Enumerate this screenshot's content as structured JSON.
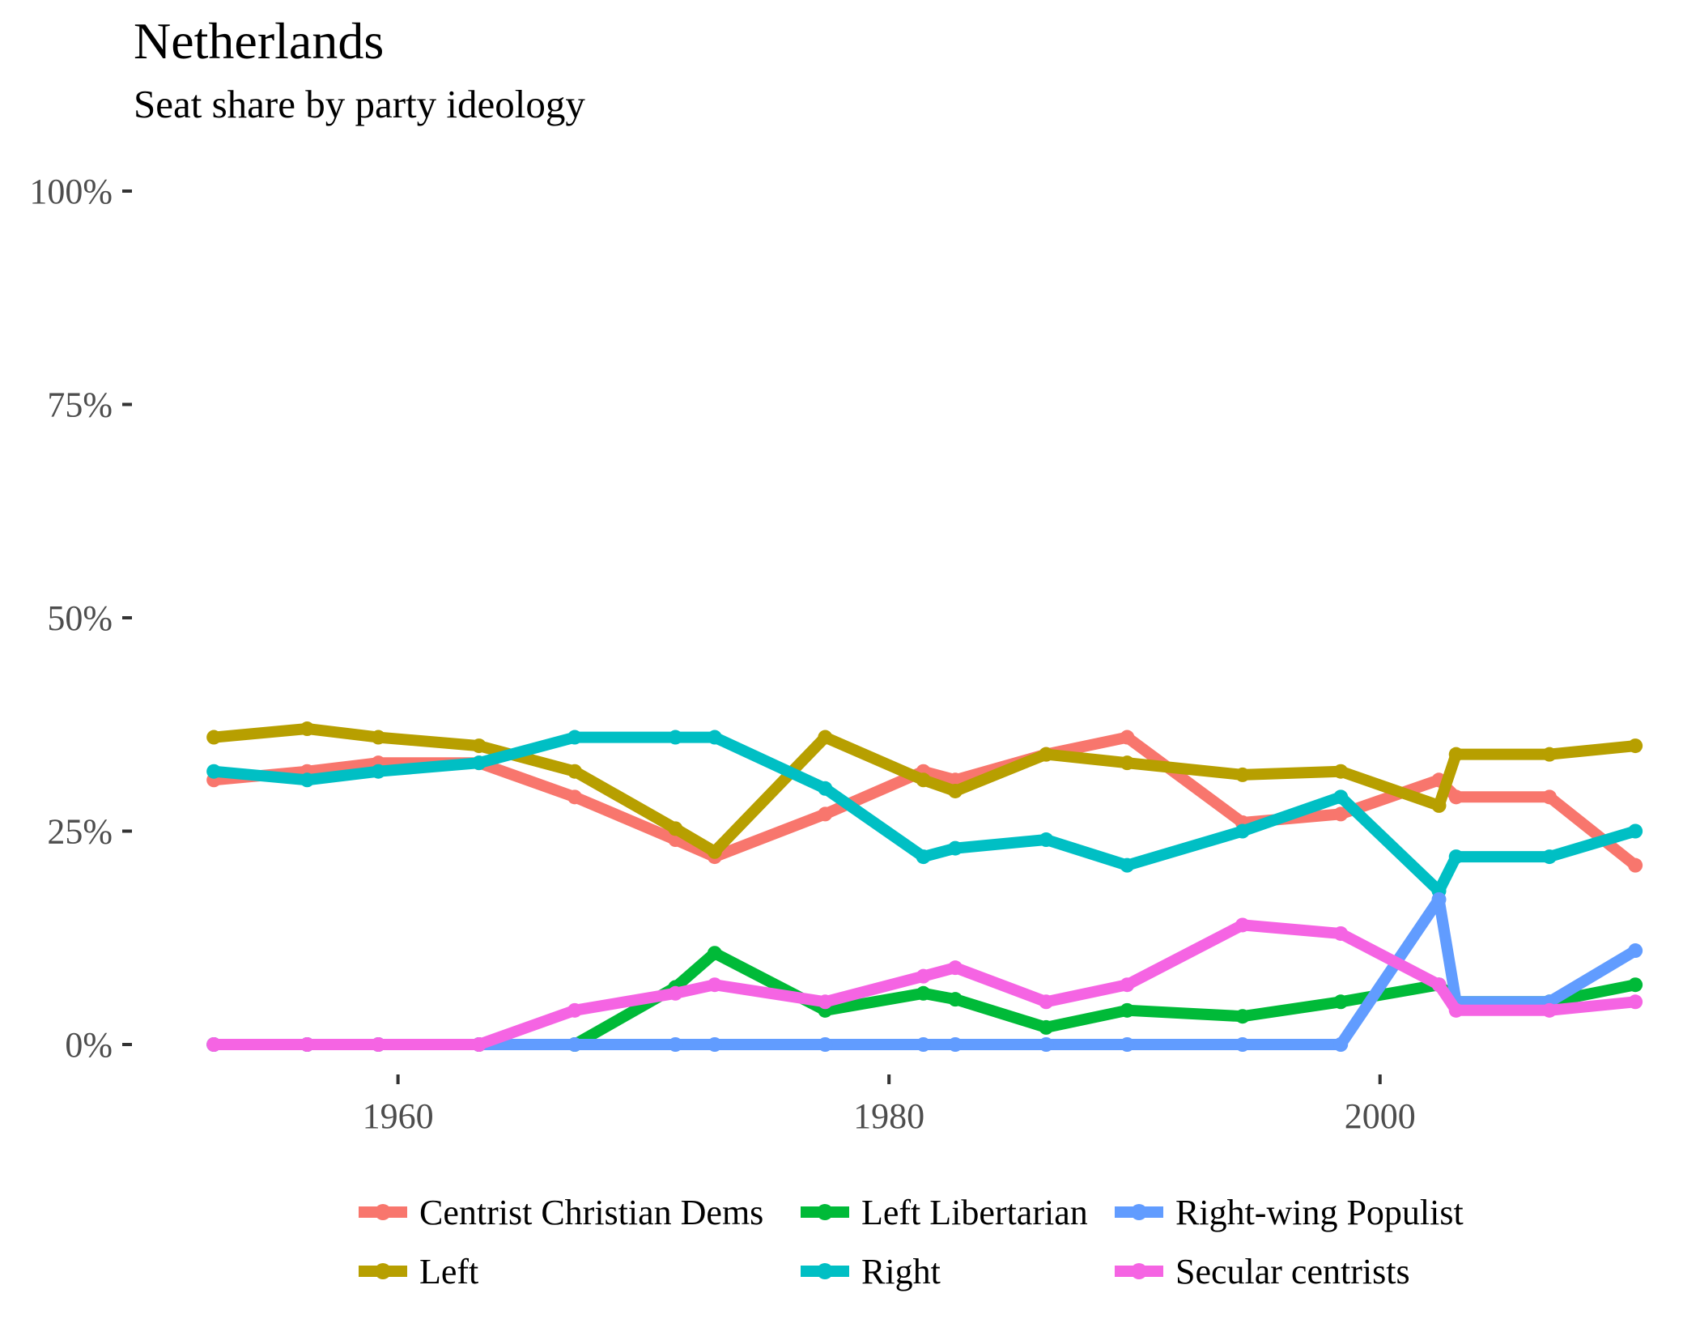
{
  "chart_data": {
    "type": "line",
    "title": "Netherlands",
    "subtitle": "Seat share by party ideology",
    "xlabel": "",
    "ylabel": "",
    "xlim": [
      1952,
      2010
    ],
    "ylim": [
      0,
      100
    ],
    "x_ticks": [
      1960,
      1980,
      2000
    ],
    "y_ticks": [
      0,
      25,
      50,
      75,
      100
    ],
    "y_tick_labels": [
      "0%",
      "25%",
      "50%",
      "75%",
      "100%"
    ],
    "grid": false,
    "legend_position": "bottom",
    "x": [
      1952.5,
      1956.3,
      1959.2,
      1963.3,
      1967.2,
      1971.3,
      1972.9,
      1977.4,
      1981.4,
      1982.7,
      1986.4,
      1989.7,
      1994.4,
      1998.4,
      2002.4,
      2003.1,
      2006.9,
      2010.4
    ],
    "series": [
      {
        "name": "Centrist Christian Dems",
        "color": "#F8766D",
        "values": [
          31,
          32,
          33,
          33,
          29,
          24,
          22,
          27,
          32,
          31,
          34,
          36,
          26,
          27,
          31,
          29,
          29,
          21
        ]
      },
      {
        "name": "Left",
        "color": "#B79F00",
        "values": [
          36,
          37,
          36,
          35,
          32,
          25.3,
          22.6,
          36,
          31,
          29.7,
          34,
          33,
          31.6,
          32,
          28,
          34,
          34,
          35
        ]
      },
      {
        "name": "Left Libertarian",
        "color": "#00BA38",
        "values": [
          0,
          0,
          0,
          0,
          0,
          6.7,
          10.7,
          4,
          6,
          5.3,
          2,
          4,
          3.3,
          5,
          7,
          5,
          5,
          7
        ]
      },
      {
        "name": "Right",
        "color": "#00BFC4",
        "values": [
          32,
          31,
          32,
          33,
          36,
          36,
          36,
          30,
          22,
          23,
          24,
          21,
          25,
          29,
          18,
          22,
          22,
          25
        ]
      },
      {
        "name": "Right-wing Populist",
        "color": "#619CFF",
        "values": [
          0,
          0,
          0,
          0,
          0,
          0,
          0,
          0,
          0,
          0,
          0,
          0,
          0,
          0,
          17,
          5,
          5,
          11
        ]
      },
      {
        "name": "Secular centrists",
        "color": "#F564E3",
        "values": [
          0,
          0,
          0,
          0,
          4,
          6,
          7,
          5,
          8,
          9,
          5,
          7,
          14,
          13,
          7,
          4,
          4,
          5
        ]
      }
    ],
    "legend_order": [
      "Centrist Christian Dems",
      "Left Libertarian",
      "Right-wing Populist",
      "Left",
      "Right",
      "Secular centrists"
    ]
  }
}
